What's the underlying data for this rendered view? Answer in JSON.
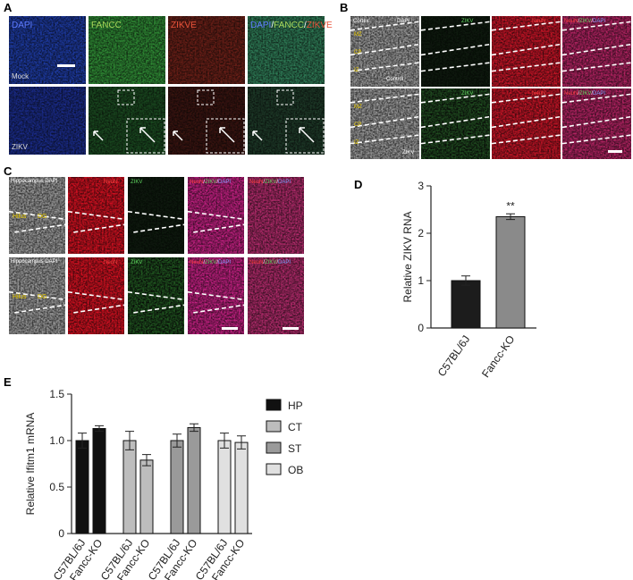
{
  "panels": {
    "A": {
      "letter": "A",
      "channels": [
        "DAPI",
        "FANCC",
        "ZIKVE"
      ],
      "merge": [
        "DAPI",
        "/",
        "FANCC",
        "/",
        "ZIKVE"
      ],
      "rows": [
        "Mock",
        "ZIKV"
      ]
    },
    "B": {
      "letter": "B",
      "region": "Cortex",
      "channels": [
        "DAPI",
        "ZIKV",
        "NeuN"
      ],
      "merge": [
        "NeuN",
        "/",
        "ZIKV",
        "/",
        "DAPI"
      ],
      "rows": [
        "Control",
        "ZIKV"
      ],
      "layers": [
        "MZ",
        "CP",
        "IZ"
      ]
    },
    "C": {
      "letter": "C",
      "region": "Hippocampus DAPI",
      "channels": [
        "NeuN",
        "ZIKV"
      ],
      "merge": [
        "NeuN",
        "/",
        "ZIKV",
        "/",
        "DAPI"
      ],
      "layers": [
        "Hilus",
        "DG"
      ]
    },
    "D": {
      "letter": "D"
    },
    "E": {
      "letter": "E"
    }
  },
  "chart_data": [
    {
      "type": "bar",
      "ylabel": "Relative ZIKV RNA",
      "categories": [
        "C57BL/6J",
        "Fancc-KO"
      ],
      "values": [
        1.0,
        2.35
      ],
      "errors": [
        0.1,
        0.06
      ],
      "colors": [
        "#1c1c1c",
        "#8a8a8a"
      ],
      "annotation": "**",
      "ylim": [
        0,
        3
      ],
      "yticks": [
        0,
        1,
        2,
        3
      ]
    },
    {
      "type": "grouped_bar",
      "ylabel": "Relative Ifitm1 mRNA",
      "categories": [
        "C57BL/6J",
        "Fancc-KO"
      ],
      "series": [
        {
          "name": "HP",
          "color": "#111111",
          "values": [
            1.0,
            1.13
          ],
          "errors": [
            0.08,
            0.03
          ]
        },
        {
          "name": "CT",
          "color": "#bdbdbd",
          "values": [
            1.0,
            0.79
          ],
          "errors": [
            0.1,
            0.06
          ]
        },
        {
          "name": "ST",
          "color": "#9a9a9a",
          "values": [
            1.0,
            1.14
          ],
          "errors": [
            0.07,
            0.04
          ]
        },
        {
          "name": "OB",
          "color": "#e0e0e0",
          "values": [
            1.0,
            0.98
          ],
          "errors": [
            0.08,
            0.07
          ]
        }
      ],
      "ylim": [
        0,
        1.5
      ],
      "yticks": [
        0,
        0.5,
        {
          "value": 1.0,
          "label": "1.0"
        },
        1.5
      ],
      "legend": "right"
    }
  ]
}
